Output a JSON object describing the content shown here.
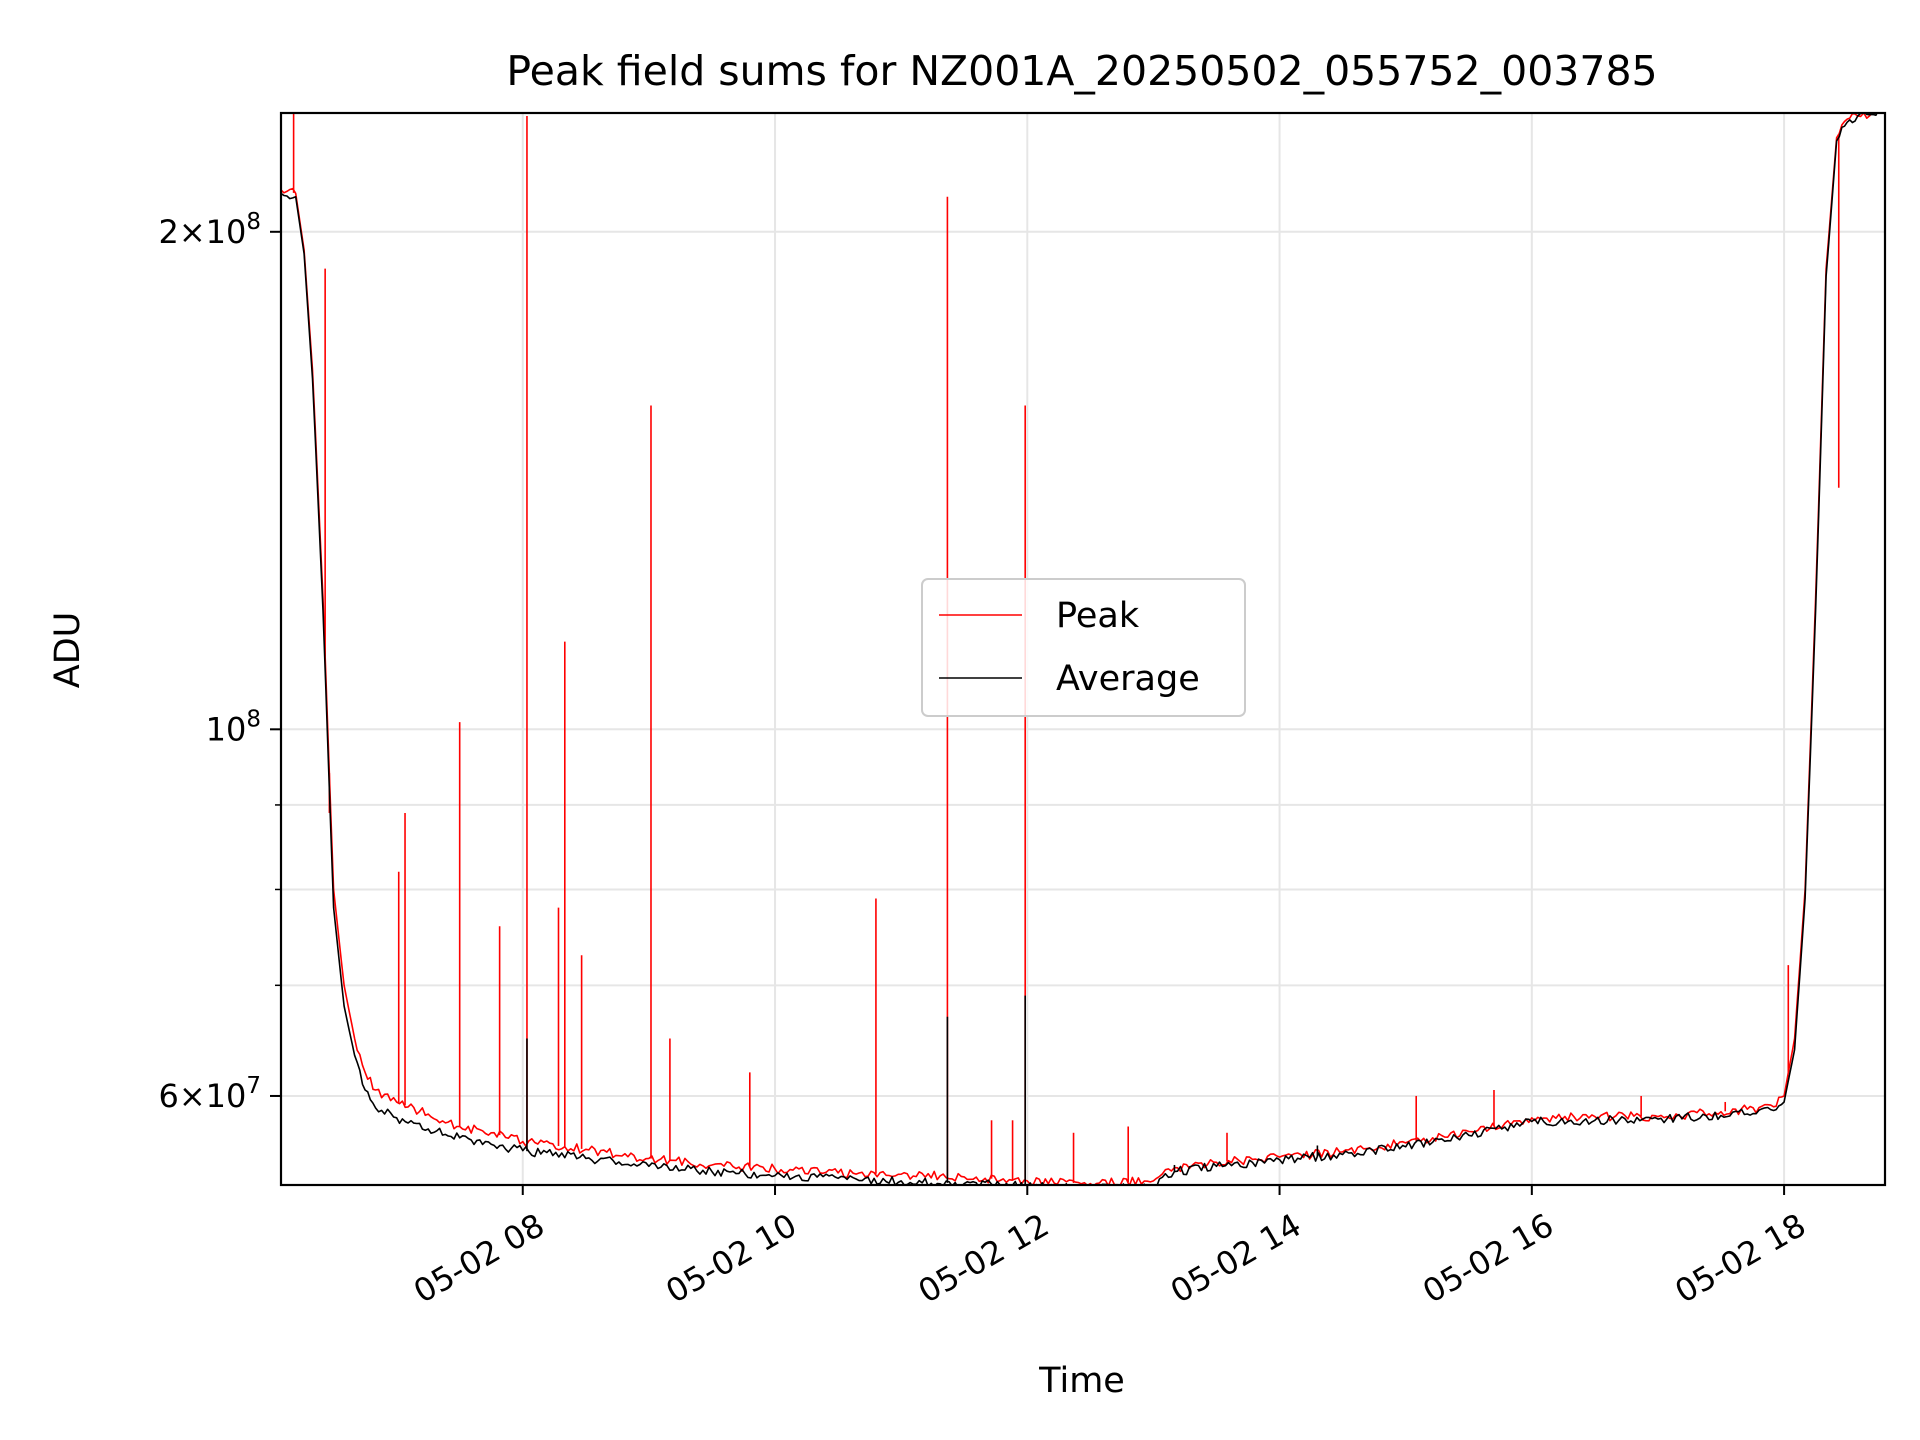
{
  "chart_data": {
    "type": "line",
    "title": "Peak field sums for NZ001A_20250502_055752_003785",
    "xlabel": "Time",
    "ylabel": "ADU",
    "x_scale": "time",
    "y_scale": "log",
    "xlim": [
      "2025-05-02 06:05",
      "2025-05-02 18:48"
    ],
    "ylim": [
      53000000,
      236000000
    ],
    "x_ticks": [
      {
        "value": "2025-05-02 08:00",
        "label": "05-02 08"
      },
      {
        "value": "2025-05-02 10:00",
        "label": "05-02 10"
      },
      {
        "value": "2025-05-02 12:00",
        "label": "05-02 12"
      },
      {
        "value": "2025-05-02 14:00",
        "label": "05-02 14"
      },
      {
        "value": "2025-05-02 16:00",
        "label": "05-02 16"
      },
      {
        "value": "2025-05-02 18:00",
        "label": "05-02 18"
      }
    ],
    "y_major_ticks": [
      {
        "value": 200000000,
        "mantissa": "2",
        "exponent": "8"
      },
      {
        "value": 100000000,
        "mantissa": "",
        "exponent": "8"
      },
      {
        "value": 60000000,
        "mantissa": "6",
        "exponent": "7"
      }
    ],
    "y_minor_ticks": [
      60000000,
      70000000,
      80000000,
      90000000
    ],
    "grid": true,
    "legend": {
      "position": "center",
      "entries": [
        "Peak",
        "Average"
      ]
    },
    "series": [
      {
        "name": "Peak",
        "color": "#ff0000",
        "x": [
          "2025-05-02 06:05",
          "2025-05-02 06:12",
          "2025-05-02 06:16",
          "2025-05-02 06:20",
          "2025-05-02 06:25",
          "2025-05-02 06:30",
          "2025-05-02 06:35",
          "2025-05-02 06:40",
          "2025-05-02 06:45",
          "2025-05-02 06:50",
          "2025-05-02 07:00",
          "2025-05-02 07:15",
          "2025-05-02 07:30",
          "2025-05-02 07:45",
          "2025-05-02 08:00",
          "2025-05-02 08:30",
          "2025-05-02 09:00",
          "2025-05-02 09:30",
          "2025-05-02 10:00",
          "2025-05-02 10:30",
          "2025-05-02 11:00",
          "2025-05-02 11:30",
          "2025-05-02 12:00",
          "2025-05-02 12:30",
          "2025-05-02 13:00",
          "2025-05-02 13:10",
          "2025-05-02 13:30",
          "2025-05-02 14:00",
          "2025-05-02 14:30",
          "2025-05-02 15:00",
          "2025-05-02 15:30",
          "2025-05-02 16:00",
          "2025-05-02 16:30",
          "2025-05-02 17:00",
          "2025-05-02 17:30",
          "2025-05-02 17:55",
          "2025-05-02 18:00",
          "2025-05-02 18:05",
          "2025-05-02 18:10",
          "2025-05-02 18:15",
          "2025-05-02 18:20",
          "2025-05-02 18:25",
          "2025-05-02 18:30",
          "2025-05-02 18:35",
          "2025-05-02 18:48"
        ],
        "y": [
          212000000,
          211000000,
          195000000,
          165000000,
          120000000,
          80000000,
          70000000,
          65000000,
          62000000,
          60500000,
          59500000,
          58500000,
          57500000,
          57000000,
          56300000,
          55700000,
          55000000,
          54500000,
          54200000,
          53900000,
          53800000,
          53600000,
          53300000,
          53100000,
          53300000,
          54300000,
          54700000,
          55100000,
          55500000,
          56200000,
          57100000,
          58200000,
          58300000,
          58300000,
          58700000,
          59100000,
          60000000,
          65000000,
          80000000,
          120000000,
          190000000,
          228000000,
          234000000,
          235000000,
          236000000
        ],
        "spikes": [
          {
            "x": "2025-05-02 06:11",
            "y": 236000000
          },
          {
            "x": "2025-05-02 06:26",
            "y": 190000000
          },
          {
            "x": "2025-05-02 06:28",
            "y": 89000000
          },
          {
            "x": "2025-05-02 07:01",
            "y": 82000000
          },
          {
            "x": "2025-05-02 07:04",
            "y": 89000000
          },
          {
            "x": "2025-05-02 07:30",
            "y": 101000000
          },
          {
            "x": "2025-05-02 07:49",
            "y": 76000000
          },
          {
            "x": "2025-05-02 08:02",
            "y": 235000000
          },
          {
            "x": "2025-05-02 08:17",
            "y": 78000000
          },
          {
            "x": "2025-05-02 08:20",
            "y": 113000000
          },
          {
            "x": "2025-05-02 08:28",
            "y": 73000000
          },
          {
            "x": "2025-05-02 09:01",
            "y": 157000000
          },
          {
            "x": "2025-05-02 09:10",
            "y": 65000000
          },
          {
            "x": "2025-05-02 09:48",
            "y": 62000000
          },
          {
            "x": "2025-05-02 10:48",
            "y": 79000000
          },
          {
            "x": "2025-05-02 11:22",
            "y": 210000000
          },
          {
            "x": "2025-05-02 11:43",
            "y": 58000000
          },
          {
            "x": "2025-05-02 11:53",
            "y": 58000000
          },
          {
            "x": "2025-05-02 11:59",
            "y": 157000000
          },
          {
            "x": "2025-05-02 12:22",
            "y": 57000000
          },
          {
            "x": "2025-05-02 12:48",
            "y": 57500000
          },
          {
            "x": "2025-05-02 13:35",
            "y": 57000000
          },
          {
            "x": "2025-05-02 15:05",
            "y": 60000000
          },
          {
            "x": "2025-05-02 15:42",
            "y": 60500000
          },
          {
            "x": "2025-05-02 16:52",
            "y": 60000000
          },
          {
            "x": "2025-05-02 17:32",
            "y": 59500000
          },
          {
            "x": "2025-05-02 18:02",
            "y": 72000000
          },
          {
            "x": "2025-05-02 18:26",
            "y": 140000000
          }
        ]
      },
      {
        "name": "Average",
        "color": "#000000",
        "x": [
          "2025-05-02 06:05",
          "2025-05-02 06:12",
          "2025-05-02 06:16",
          "2025-05-02 06:20",
          "2025-05-02 06:25",
          "2025-05-02 06:30",
          "2025-05-02 06:35",
          "2025-05-02 06:40",
          "2025-05-02 06:45",
          "2025-05-02 06:50",
          "2025-05-02 07:00",
          "2025-05-02 07:15",
          "2025-05-02 07:30",
          "2025-05-02 07:45",
          "2025-05-02 08:00",
          "2025-05-02 08:30",
          "2025-05-02 09:00",
          "2025-05-02 09:30",
          "2025-05-02 10:00",
          "2025-05-02 10:30",
          "2025-05-02 11:00",
          "2025-05-02 11:30",
          "2025-05-02 12:00",
          "2025-05-02 12:30",
          "2025-05-02 13:00",
          "2025-05-02 13:10",
          "2025-05-02 13:30",
          "2025-05-02 14:00",
          "2025-05-02 14:30",
          "2025-05-02 15:00",
          "2025-05-02 15:30",
          "2025-05-02 16:00",
          "2025-05-02 16:30",
          "2025-05-02 17:00",
          "2025-05-02 17:30",
          "2025-05-02 17:55",
          "2025-05-02 18:00",
          "2025-05-02 18:05",
          "2025-05-02 18:10",
          "2025-05-02 18:15",
          "2025-05-02 18:20",
          "2025-05-02 18:25",
          "2025-05-02 18:30",
          "2025-05-02 18:35",
          "2025-05-02 18:48"
        ],
        "y": [
          211000000,
          210000000,
          194000000,
          163000000,
          118000000,
          78000000,
          68000000,
          63500000,
          60500000,
          59000000,
          58200000,
          57300000,
          56600000,
          56100000,
          55600000,
          55000000,
          54400000,
          54000000,
          53700000,
          53500000,
          53300000,
          53100000,
          52900000,
          52700000,
          52900000,
          54000000,
          54400000,
          54900000,
          55300000,
          55900000,
          56800000,
          57900000,
          58000000,
          58100000,
          58400000,
          58800000,
          59500000,
          64000000,
          79000000,
          118000000,
          188000000,
          227000000,
          233000000,
          235000000,
          236000000
        ],
        "spikes": [
          {
            "x": "2025-05-02 08:02",
            "y": 65000000
          },
          {
            "x": "2025-05-02 11:22",
            "y": 67000000
          },
          {
            "x": "2025-05-02 11:59",
            "y": 69000000
          },
          {
            "x": "2025-05-02 13:10",
            "y": 54500000
          },
          {
            "x": "2025-05-02 14:18",
            "y": 56000000
          }
        ]
      }
    ]
  }
}
